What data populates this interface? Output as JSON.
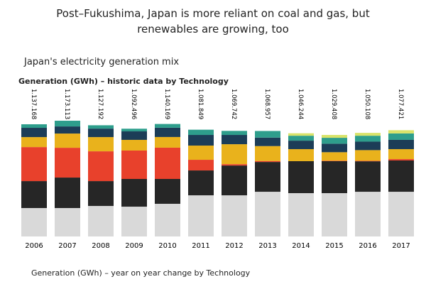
{
  "title": "Post–Fukushima, Japan is more reliant on coal and gas, but renewables are growing, too",
  "subtitle": "Japan's electricity generation mix",
  "footer": "Generation (GWh) – year on year change by Technology",
  "chart_data": {
    "type": "stacked_bar",
    "title": "Generation (GWh) – historic data by Technology",
    "categories": [
      "2006",
      "2007",
      "2008",
      "2009",
      "2010",
      "2011",
      "2012",
      "2013",
      "2014",
      "2015",
      "2016",
      "2017"
    ],
    "series": [
      {
        "color": "#d9d9d9",
        "values": [
          288000,
          288000,
          309000,
          302000,
          331000,
          417000,
          417000,
          453000,
          439000,
          439000,
          453000,
          453000
        ]
      },
      {
        "color": "#262626",
        "values": [
          273000,
          309000,
          252000,
          281000,
          252000,
          252000,
          302000,
          302000,
          324000,
          324000,
          309000,
          317000
        ]
      },
      {
        "color": "#e8412c",
        "values": [
          345000,
          302000,
          302000,
          288000,
          317000,
          108000,
          14000,
          10000,
          0,
          5000,
          5000,
          14000
        ]
      },
      {
        "color": "#e9b21c",
        "values": [
          101000,
          144000,
          144000,
          108000,
          108000,
          144000,
          202000,
          151000,
          122000,
          86000,
          108000,
          101000
        ]
      },
      {
        "color": "#1c3d57",
        "values": [
          94000,
          72000,
          86000,
          86000,
          94000,
          108000,
          94000,
          86000,
          86000,
          86000,
          86000,
          94000
        ]
      },
      {
        "color": "#2e9e8c",
        "values": [
          36000,
          58000,
          34000,
          27000,
          38000,
          53000,
          41000,
          67000,
          50000,
          60000,
          60000,
          65000
        ]
      },
      {
        "color": "#d9e36a",
        "values": [
          0,
          0,
          0,
          0,
          0,
          0,
          0,
          0,
          25000,
          29000,
          29000,
          33000
        ]
      }
    ],
    "totals": [
      1137168,
      1173113,
      1127192,
      1092496,
      1140169,
      1081849,
      1069742,
      1068957,
      1046244,
      1029408,
      1050108,
      1077421
    ],
    "total_labels": [
      "1.137.168",
      "1.173.113",
      "1.127.192",
      "1.092.496",
      "1.140.169",
      "1.081.849",
      "1.069.742",
      "1.068.957",
      "1.046.244",
      "1.029.408",
      "1.050.108",
      "1.077.421"
    ]
  }
}
